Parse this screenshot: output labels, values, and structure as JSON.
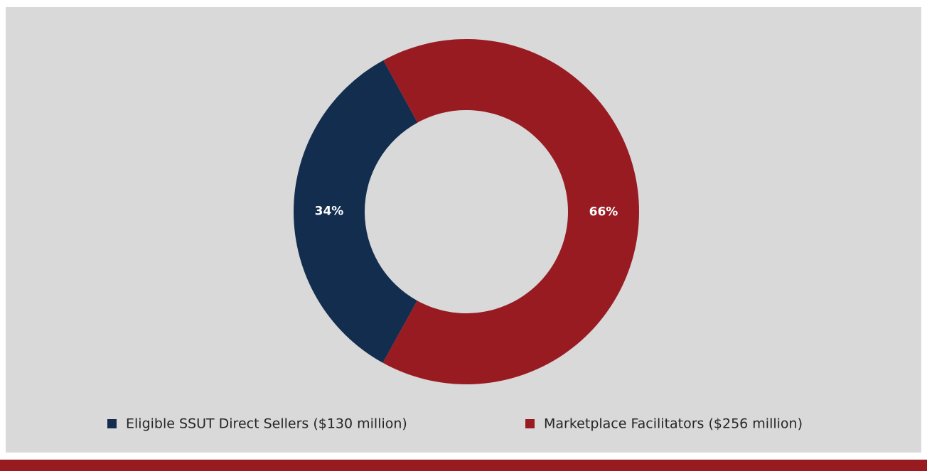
{
  "chart_data": {
    "type": "donut",
    "categories": [
      "Eligible SSUT Direct Sellers ($130 million)",
      "Marketplace Facilitators ($256 million)"
    ],
    "values": [
      34,
      66
    ],
    "value_labels": [
      "34%",
      "66%"
    ],
    "colors": [
      "#132d4f",
      "#981b22"
    ],
    "legend": "bottom"
  }
}
